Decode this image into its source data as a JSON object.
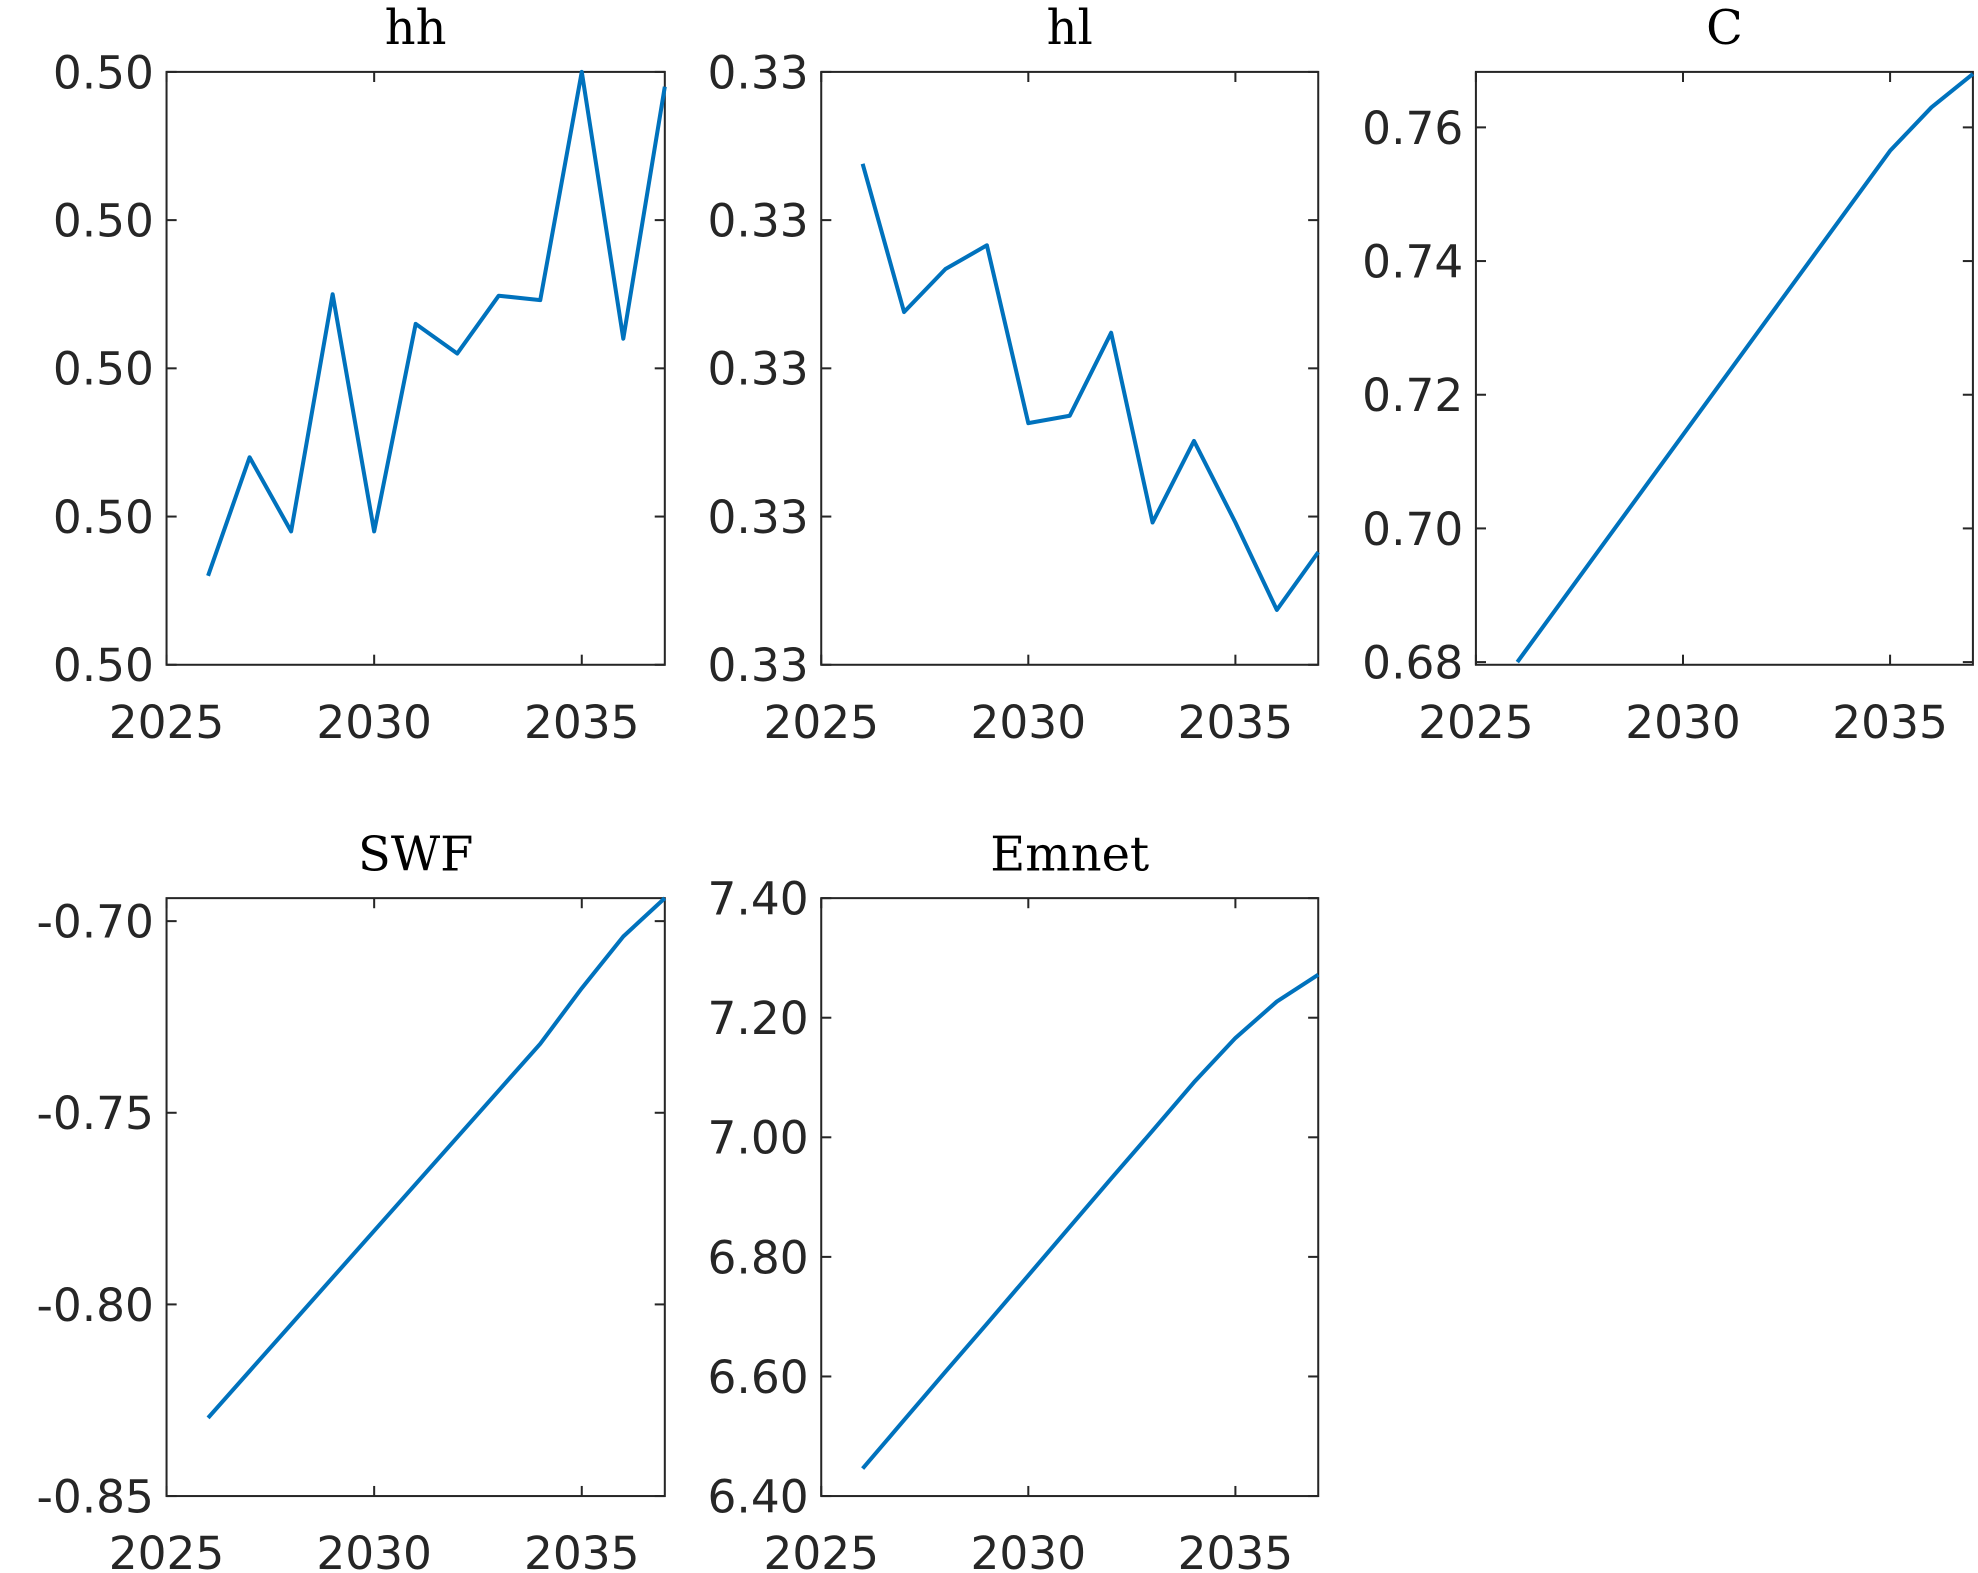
{
  "chart_data": [
    {
      "type": "line",
      "title": "hh",
      "color": "#0072bd",
      "x": [
        2026,
        2027,
        2028,
        2029,
        2030,
        2031,
        2032,
        2033,
        2034,
        2035,
        2036,
        2037
      ],
      "values": [
        0.49986,
        0.49994,
        0.49989,
        0.50005,
        0.49989,
        0.50003,
        0.50001,
        0.500049,
        0.500046,
        0.5002,
        0.50002,
        0.50019
      ],
      "xlim": [
        2025,
        2037
      ],
      "xticks": [
        2025,
        2030,
        2035
      ],
      "ylim": [
        0.4998,
        0.5002
      ],
      "yticks": [
        {
          "value": 0.4998,
          "label": "0.50"
        },
        {
          "value": 0.4999,
          "label": "0.50"
        },
        {
          "value": 0.5,
          "label": "0.50"
        },
        {
          "value": 0.5001,
          "label": "0.50"
        },
        {
          "value": 0.5002,
          "label": "0.50"
        }
      ]
    },
    {
      "type": "line",
      "title": "hl",
      "color": "#0072bd",
      "x": [
        2026,
        2027,
        2028,
        2029,
        2030,
        2031,
        2032,
        2033,
        2034,
        2035,
        2036,
        2037
      ],
      "values": [
        0.330138,
        0.330038,
        0.330067,
        0.330083,
        0.329963,
        0.329968,
        0.330024,
        0.329896,
        0.329951,
        0.329896,
        0.329837,
        0.329876
      ],
      "xlim": [
        2025,
        2037
      ],
      "xticks": [
        2025,
        2030,
        2035
      ],
      "ylim": [
        0.3298,
        0.3302
      ],
      "yticks": [
        {
          "value": 0.3298,
          "label": "0.33"
        },
        {
          "value": 0.3299,
          "label": "0.33"
        },
        {
          "value": 0.33,
          "label": "0.33"
        },
        {
          "value": 0.3301,
          "label": "0.33"
        },
        {
          "value": 0.3302,
          "label": "0.33"
        }
      ]
    },
    {
      "type": "line",
      "title": "C",
      "color": "#0072bd",
      "x": [
        2026,
        2027,
        2028,
        2029,
        2030,
        2031,
        2032,
        2033,
        2034,
        2035,
        2036,
        2037
      ],
      "values": [
        0.68,
        0.6885,
        0.697,
        0.7055,
        0.714,
        0.7225,
        0.731,
        0.7395,
        0.748,
        0.7565,
        0.763,
        0.768
      ],
      "xlim": [
        2025,
        2037
      ],
      "xticks": [
        2025,
        2030,
        2035
      ],
      "ylim": [
        0.6796,
        0.7683
      ],
      "yticks": [
        {
          "value": 0.68,
          "label": "0.68"
        },
        {
          "value": 0.7,
          "label": "0.70"
        },
        {
          "value": 0.72,
          "label": "0.72"
        },
        {
          "value": 0.74,
          "label": "0.74"
        },
        {
          "value": 0.76,
          "label": "0.76"
        }
      ]
    },
    {
      "type": "line",
      "title": "SWF",
      "color": "#0072bd",
      "x": [
        2026,
        2027,
        2028,
        2029,
        2030,
        2031,
        2032,
        2033,
        2034,
        2035,
        2036,
        2037
      ],
      "values": [
        -0.8296,
        -0.8174,
        -0.8052,
        -0.793,
        -0.7808,
        -0.7686,
        -0.7564,
        -0.7442,
        -0.732,
        -0.7175,
        -0.704,
        -0.694
      ],
      "xlim": [
        2025,
        2037
      ],
      "xticks": [
        2025,
        2030,
        2035
      ],
      "ylim": [
        -0.85,
        -0.694
      ],
      "yticks": [
        {
          "value": -0.85,
          "label": "-0.85"
        },
        {
          "value": -0.8,
          "label": "-0.80"
        },
        {
          "value": -0.75,
          "label": "-0.75"
        },
        {
          "value": -0.7,
          "label": "-0.70"
        }
      ]
    },
    {
      "type": "line",
      "title": "Emnet",
      "color": "#0072bd",
      "x": [
        2026,
        2027,
        2028,
        2029,
        2030,
        2031,
        2032,
        2033,
        2034,
        2035,
        2036,
        2037
      ],
      "values": [
        6.446,
        6.527,
        6.608,
        6.688,
        6.769,
        6.85,
        6.931,
        7.011,
        7.092,
        7.166,
        7.227,
        7.272
      ],
      "xlim": [
        2025,
        2037
      ],
      "xticks": [
        2025,
        2030,
        2035
      ],
      "ylim": [
        6.4,
        7.4
      ],
      "yticks": [
        {
          "value": 6.4,
          "label": "6.40"
        },
        {
          "value": 6.6,
          "label": "6.60"
        },
        {
          "value": 6.8,
          "label": "6.80"
        },
        {
          "value": 7.0,
          "label": "7.00"
        },
        {
          "value": 7.2,
          "label": "7.20"
        },
        {
          "value": 7.4,
          "label": "7.40"
        }
      ]
    }
  ]
}
